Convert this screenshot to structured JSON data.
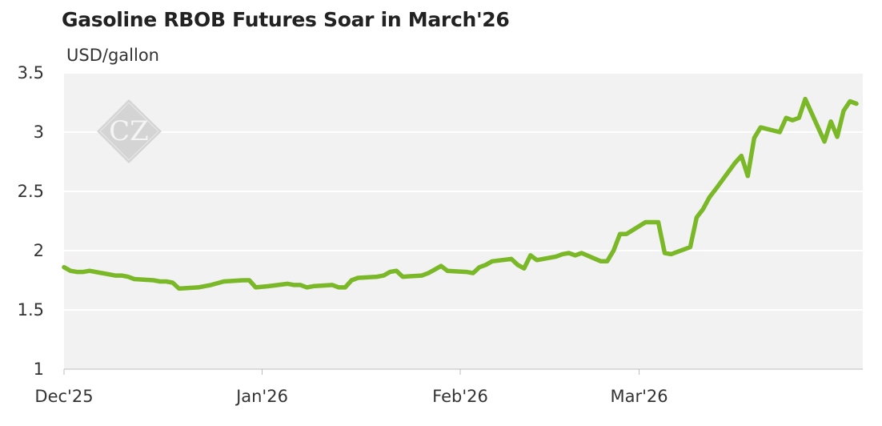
{
  "chart_data": {
    "type": "line",
    "title": "Gasoline RBOB Futures Soar in March'26",
    "ylabel": "USD/gallon",
    "xlabel": "",
    "ylim": [
      1,
      3.5
    ],
    "yticks": [
      "1",
      "1.5",
      "2",
      "2.5",
      "3",
      "3.5"
    ],
    "xticks": [
      {
        "label": "Dec'25",
        "date": "2025-12-01"
      },
      {
        "label": "Jan'26",
        "date": "2026-01-01"
      },
      {
        "label": "Feb'26",
        "date": "2026-02-01"
      },
      {
        "label": "Mar'26",
        "date": "2026-03-01"
      }
    ],
    "xlim": [
      "2025-12-01",
      "2026-04-05"
    ],
    "grid": true,
    "series": [
      {
        "color": "#7ab827",
        "points": [
          [
            "2025-12-01",
            1.86
          ],
          [
            "2025-12-02",
            1.83
          ],
          [
            "2025-12-03",
            1.82
          ],
          [
            "2025-12-04",
            1.82
          ],
          [
            "2025-12-05",
            1.83
          ],
          [
            "2025-12-08",
            1.8
          ],
          [
            "2025-12-09",
            1.79
          ],
          [
            "2025-12-10",
            1.79
          ],
          [
            "2025-12-11",
            1.78
          ],
          [
            "2025-12-12",
            1.76
          ],
          [
            "2025-12-15",
            1.75
          ],
          [
            "2025-12-16",
            1.74
          ],
          [
            "2025-12-17",
            1.74
          ],
          [
            "2025-12-18",
            1.73
          ],
          [
            "2025-12-19",
            1.68
          ],
          [
            "2025-12-22",
            1.69
          ],
          [
            "2025-12-23",
            1.7
          ],
          [
            "2025-12-24",
            1.71
          ],
          [
            "2025-12-26",
            1.74
          ],
          [
            "2025-12-29",
            1.75
          ],
          [
            "2025-12-30",
            1.75
          ],
          [
            "2025-12-31",
            1.69
          ],
          [
            "2026-01-02",
            1.7
          ],
          [
            "2026-01-05",
            1.72
          ],
          [
            "2026-01-06",
            1.71
          ],
          [
            "2026-01-07",
            1.71
          ],
          [
            "2026-01-08",
            1.69
          ],
          [
            "2026-01-09",
            1.7
          ],
          [
            "2026-01-12",
            1.71
          ],
          [
            "2026-01-13",
            1.69
          ],
          [
            "2026-01-14",
            1.69
          ],
          [
            "2026-01-15",
            1.75
          ],
          [
            "2026-01-16",
            1.77
          ],
          [
            "2026-01-19",
            1.78
          ],
          [
            "2026-01-20",
            1.79
          ],
          [
            "2026-01-21",
            1.82
          ],
          [
            "2026-01-22",
            1.83
          ],
          [
            "2026-01-23",
            1.78
          ],
          [
            "2026-01-26",
            1.79
          ],
          [
            "2026-01-27",
            1.81
          ],
          [
            "2026-01-28",
            1.84
          ],
          [
            "2026-01-29",
            1.87
          ],
          [
            "2026-01-30",
            1.83
          ],
          [
            "2026-02-02",
            1.82
          ],
          [
            "2026-02-03",
            1.81
          ],
          [
            "2026-02-04",
            1.86
          ],
          [
            "2026-02-05",
            1.88
          ],
          [
            "2026-02-06",
            1.91
          ],
          [
            "2026-02-09",
            1.93
          ],
          [
            "2026-02-10",
            1.88
          ],
          [
            "2026-02-11",
            1.85
          ],
          [
            "2026-02-12",
            1.96
          ],
          [
            "2026-02-13",
            1.92
          ],
          [
            "2026-02-16",
            1.95
          ],
          [
            "2026-02-17",
            1.97
          ],
          [
            "2026-02-18",
            1.98
          ],
          [
            "2026-02-19",
            1.96
          ],
          [
            "2026-02-20",
            1.98
          ],
          [
            "2026-02-23",
            1.91
          ],
          [
            "2026-02-24",
            1.91
          ],
          [
            "2026-02-25",
            2.0
          ],
          [
            "2026-02-26",
            2.14
          ],
          [
            "2026-02-27",
            2.14
          ],
          [
            "2026-03-02",
            2.24
          ],
          [
            "2026-03-03",
            2.24
          ],
          [
            "2026-03-04",
            2.24
          ],
          [
            "2026-03-05",
            1.98
          ],
          [
            "2026-03-06",
            1.97
          ],
          [
            "2026-03-09",
            2.03
          ],
          [
            "2026-03-10",
            2.28
          ],
          [
            "2026-03-11",
            2.35
          ],
          [
            "2026-03-12",
            2.45
          ],
          [
            "2026-03-13",
            2.52
          ],
          [
            "2026-03-16",
            2.74
          ],
          [
            "2026-03-17",
            2.8
          ],
          [
            "2026-03-18",
            2.63
          ],
          [
            "2026-03-19",
            2.95
          ],
          [
            "2026-03-20",
            3.04
          ],
          [
            "2026-03-23",
            3.0
          ],
          [
            "2026-03-24",
            3.12
          ],
          [
            "2026-03-25",
            3.1
          ],
          [
            "2026-03-26",
            3.12
          ],
          [
            "2026-03-27",
            3.28
          ],
          [
            "2026-03-30",
            2.92
          ],
          [
            "2026-03-31",
            3.09
          ],
          [
            "2026-04-01",
            2.96
          ],
          [
            "2026-04-02",
            3.18
          ],
          [
            "2026-04-03",
            3.26
          ],
          [
            "2026-04-04",
            3.24
          ]
        ]
      }
    ]
  },
  "watermark": {
    "text": "CZ",
    "color": "#cccccc"
  }
}
